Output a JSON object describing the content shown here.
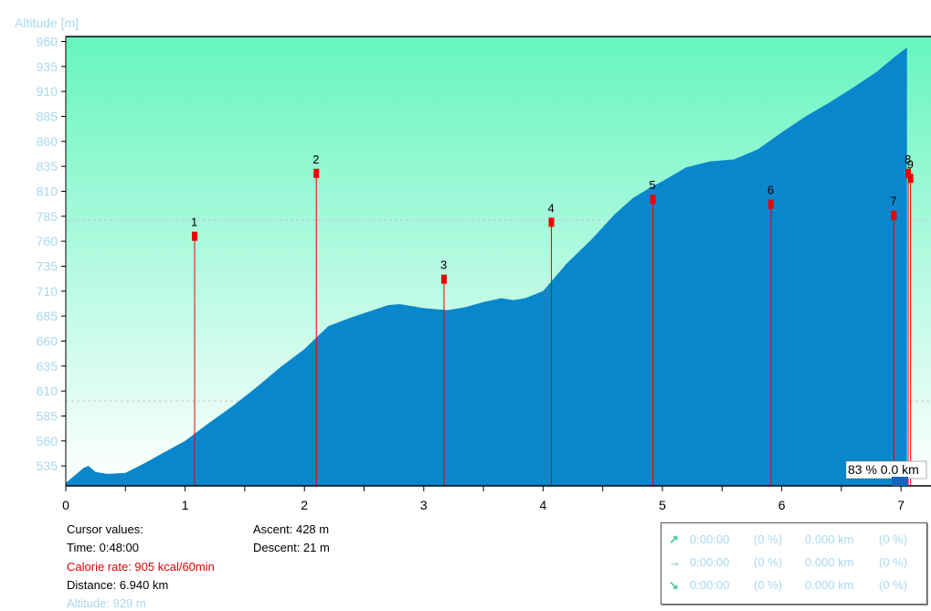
{
  "chart_data": {
    "type": "area",
    "ylabel": "Altitude [m]",
    "xlim": [
      0,
      7.2
    ],
    "ylim": [
      515,
      965
    ],
    "y_ticks": [
      535,
      560,
      585,
      610,
      635,
      660,
      685,
      710,
      735,
      760,
      785,
      810,
      835,
      860,
      885,
      910,
      935,
      960
    ],
    "x_ticks": [
      0,
      1,
      2,
      3,
      4,
      5,
      6,
      7
    ],
    "reference_lines": [
      781,
      600
    ],
    "colors": {
      "profile_fill": "#0a87cc",
      "sky_top": "#66f5c0",
      "sky_bottom": "#ffffff",
      "marker": "#ee0000",
      "ref_line": "#c8c8c8"
    },
    "profile": {
      "x": [
        0,
        0.08,
        0.15,
        0.19,
        0.25,
        0.35,
        0.5,
        0.65,
        0.8,
        1.0,
        1.2,
        1.4,
        1.6,
        1.8,
        2.0,
        2.2,
        2.4,
        2.55,
        2.7,
        2.8,
        3.0,
        3.2,
        3.35,
        3.5,
        3.65,
        3.75,
        3.85,
        4.0,
        4.2,
        4.4,
        4.6,
        4.75,
        4.9,
        5.0,
        5.2,
        5.4,
        5.6,
        5.8,
        6.0,
        6.2,
        6.4,
        6.6,
        6.8,
        6.95,
        7.05
      ],
      "y": [
        518,
        526,
        533,
        535,
        529,
        527,
        528,
        537,
        547,
        560,
        578,
        595,
        614,
        634,
        652,
        675,
        684,
        690,
        696,
        697,
        693,
        691,
        694,
        699,
        703,
        701,
        703,
        710,
        738,
        761,
        787,
        803,
        814,
        820,
        834,
        840,
        842,
        852,
        869,
        885,
        899,
        914,
        930,
        945,
        954
      ]
    },
    "markers": [
      {
        "label": "1",
        "x": 1.08,
        "y": 765
      },
      {
        "label": "2",
        "x": 2.1,
        "y": 828
      },
      {
        "label": "3",
        "x": 3.17,
        "y": 722
      },
      {
        "label": "4",
        "x": 4.07,
        "y": 779
      },
      {
        "label": "5",
        "x": 4.92,
        "y": 802
      },
      {
        "label": "6",
        "x": 5.91,
        "y": 797
      },
      {
        "label": "7",
        "x": 6.94,
        "y": 786
      },
      {
        "label": "8",
        "x": 7.06,
        "y": 828
      },
      {
        "label": "9",
        "x": 7.08,
        "y": 823
      }
    ],
    "cursor_readout": "83 % 0.0 km"
  },
  "cursor": {
    "heading": "Cursor values:",
    "time": "Time: 0:48:00",
    "calorie_rate": "Calorie rate: 905 kcal/60min",
    "distance": "Distance: 6.940 km",
    "altitude": "Altitude: 929 m"
  },
  "totals": {
    "ascent": "Ascent: 428 m",
    "descent": "Descent: 21 m"
  },
  "stats": [
    {
      "icon": "arrow-up-right-icon",
      "glyph": "↗",
      "time": "0:00:00",
      "pct": "(0 %)",
      "dist": "0.000 km",
      "pct2": "(0 %)"
    },
    {
      "icon": "arrow-right-icon",
      "glyph": "→",
      "time": "0:00:00",
      "pct": "(0 %)",
      "dist": "0.000 km",
      "pct2": "(0 %)"
    },
    {
      "icon": "arrow-down-right-icon",
      "glyph": "↘",
      "time": "0:00:00",
      "pct": "(0 %)",
      "dist": "0.000 km",
      "pct2": "(0 %)"
    }
  ]
}
